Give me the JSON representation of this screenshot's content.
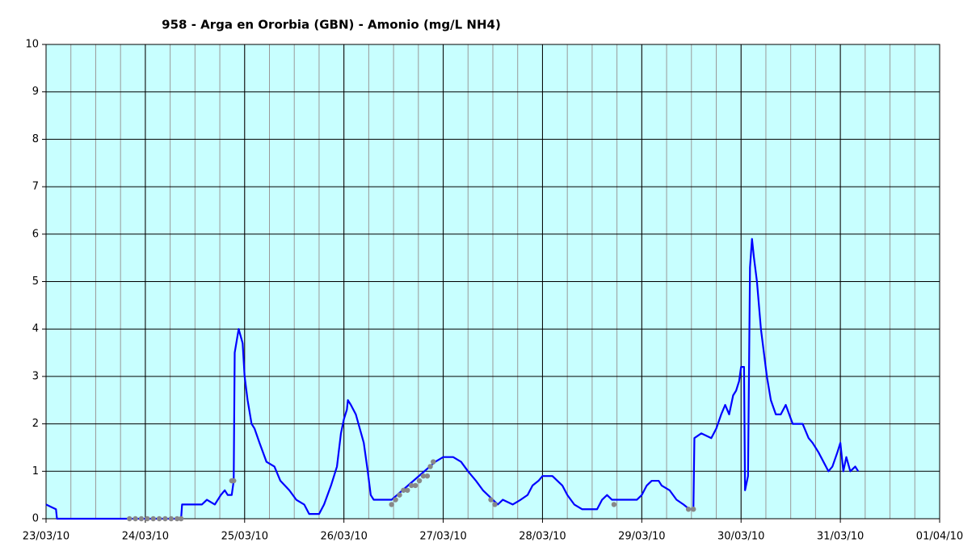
{
  "chart_data": {
    "type": "line",
    "title": "958 - Arga en Ororbia (GBN) - Amonio (mg/L NH4)",
    "background": "#c8ffff",
    "grid": true,
    "x_minor_step": 0.25,
    "xlim": [
      0,
      9
    ],
    "xticks": [
      {
        "value": 0,
        "label": "23/03/10"
      },
      {
        "value": 1,
        "label": "24/03/10"
      },
      {
        "value": 2,
        "label": "25/03/10"
      },
      {
        "value": 3,
        "label": "26/03/10"
      },
      {
        "value": 4,
        "label": "27/03/10"
      },
      {
        "value": 5,
        "label": "28/03/10"
      },
      {
        "value": 6,
        "label": "29/03/10"
      },
      {
        "value": 7,
        "label": "30/03/10"
      },
      {
        "value": 8,
        "label": "31/03/10"
      },
      {
        "value": 9,
        "label": "01/04/10"
      }
    ],
    "ylim": [
      0,
      10
    ],
    "yticks": [
      0,
      1,
      2,
      3,
      4,
      5,
      6,
      7,
      8,
      9,
      10
    ],
    "series": [
      {
        "kind": "line",
        "color": "#0000ff",
        "x": [
          0,
          0.05,
          0.1,
          0.11,
          0.84,
          1.36,
          1.37,
          1.57,
          1.62,
          1.7,
          1.76,
          1.8,
          1.83,
          1.87,
          1.89,
          1.9,
          1.94,
          1.98,
          2.0,
          2.03,
          2.07,
          2.1,
          2.15,
          2.22,
          2.3,
          2.36,
          2.45,
          2.52,
          2.6,
          2.65,
          2.75,
          2.8,
          2.87,
          2.93,
          2.97,
          3.0,
          3.03,
          3.04,
          3.07,
          3.12,
          3.2,
          3.24,
          3.27,
          3.3,
          3.4,
          3.48,
          3.92,
          4.0,
          4.1,
          4.18,
          4.25,
          4.33,
          4.4,
          4.45,
          4.5,
          4.55,
          4.6,
          4.7,
          4.78,
          4.85,
          4.9,
          4.96,
          5.0,
          5.1,
          5.2,
          5.25,
          5.32,
          5.4,
          5.55,
          5.6,
          5.65,
          5.7,
          5.75,
          5.95,
          6.0,
          6.05,
          6.1,
          6.17,
          6.2,
          6.28,
          6.35,
          6.42,
          6.48,
          6.52,
          6.53,
          6.6,
          6.7,
          6.75,
          6.8,
          6.84,
          6.88,
          6.92,
          6.95,
          6.98,
          7.0,
          7.03,
          7.04,
          7.07,
          7.09,
          7.11,
          7.13,
          7.16,
          7.2,
          7.26,
          7.3,
          7.35,
          7.4,
          7.45,
          7.52,
          7.62,
          7.68,
          7.72,
          7.78,
          7.83,
          7.88,
          7.92,
          7.97,
          8.0,
          8.03,
          8.06,
          8.1,
          8.15,
          8.18
        ],
        "values": [
          0.3,
          0.25,
          0.2,
          0,
          0,
          0,
          0.3,
          0.3,
          0.4,
          0.3,
          0.5,
          0.6,
          0.5,
          0.5,
          0.8,
          3.5,
          4.0,
          3.7,
          3.0,
          2.5,
          2.0,
          1.9,
          1.6,
          1.2,
          1.1,
          0.8,
          0.6,
          0.4,
          0.3,
          0.1,
          0.1,
          0.3,
          0.7,
          1.1,
          1.8,
          2.1,
          2.3,
          2.5,
          2.4,
          2.2,
          1.6,
          1.0,
          0.5,
          0.4,
          0.4,
          0.4,
          1.2,
          1.3,
          1.3,
          1.2,
          1.0,
          0.8,
          0.6,
          0.5,
          0.4,
          0.3,
          0.4,
          0.3,
          0.4,
          0.5,
          0.7,
          0.8,
          0.9,
          0.9,
          0.7,
          0.5,
          0.3,
          0.2,
          0.2,
          0.4,
          0.5,
          0.4,
          0.4,
          0.4,
          0.5,
          0.7,
          0.8,
          0.8,
          0.7,
          0.6,
          0.4,
          0.3,
          0.2,
          0.2,
          1.7,
          1.8,
          1.7,
          1.9,
          2.2,
          2.4,
          2.2,
          2.6,
          2.7,
          2.9,
          3.2,
          3.2,
          0.6,
          0.9,
          5.3,
          5.9,
          5.5,
          5.0,
          4.0,
          3.0,
          2.5,
          2.2,
          2.2,
          2.4,
          2.0,
          2.0,
          1.7,
          1.6,
          1.4,
          1.2,
          1.0,
          1.1,
          1.4,
          1.6,
          1.0,
          1.3,
          1.0,
          1.1,
          1.0
        ]
      },
      {
        "kind": "points",
        "color": "#888888",
        "x": [
          0.84,
          0.9,
          0.96,
          1.02,
          1.08,
          1.14,
          1.2,
          1.26,
          1.32,
          1.36,
          1.87,
          1.89,
          3.48,
          3.52,
          3.56,
          3.6,
          3.64,
          3.68,
          3.72,
          3.76,
          3.8,
          3.84,
          3.87,
          3.9,
          4.48,
          4.52,
          5.72,
          6.47,
          6.52
        ],
        "values": [
          0,
          0,
          0,
          0,
          0,
          0,
          0,
          0,
          0,
          0,
          0.8,
          0.8,
          0.3,
          0.4,
          0.5,
          0.6,
          0.6,
          0.7,
          0.7,
          0.8,
          0.9,
          0.9,
          1.1,
          1.2,
          0.4,
          0.3,
          0.3,
          0.2,
          0.2
        ]
      }
    ]
  }
}
